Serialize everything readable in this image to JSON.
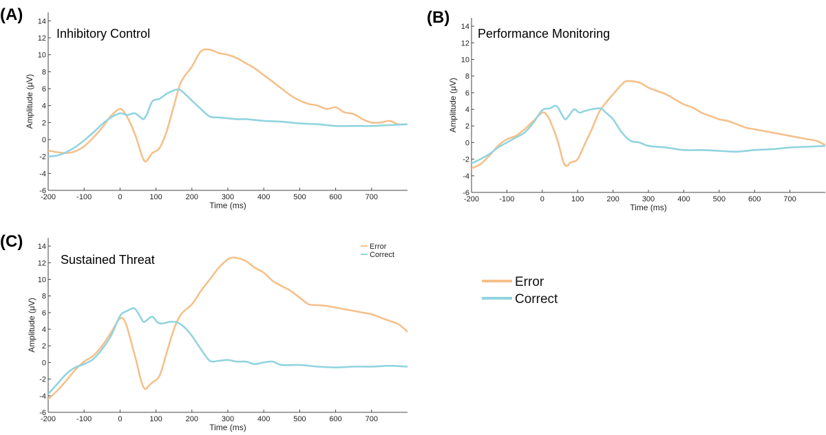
{
  "legend": {
    "items": [
      {
        "label": "Error",
        "color": "#F5C08A"
      },
      {
        "label": "Correct",
        "color": "#91D4E0"
      }
    ]
  },
  "chart_data": [
    {
      "type": "line",
      "letter": "(A)",
      "title": "Inhibitory Control",
      "xlabel": "Time (ms)",
      "ylabel": "Amplitude (μV)",
      "xlim": [
        -200,
        800
      ],
      "ylim": [
        -6,
        15
      ],
      "xticks": [
        -200,
        -100,
        0,
        100,
        200,
        300,
        400,
        500,
        600,
        700
      ],
      "yticks": [
        -6,
        -4,
        -2,
        0,
        2,
        4,
        6,
        8,
        10,
        12,
        14
      ],
      "series": [
        {
          "name": "Error",
          "color": "#F5C08A",
          "points": [
            [
              -200,
              -1.3
            ],
            [
              -175,
              -1.5
            ],
            [
              -150,
              -1.6
            ],
            [
              -125,
              -1.4
            ],
            [
              -100,
              -0.8
            ],
            [
              -75,
              0.2
            ],
            [
              -50,
              1.4
            ],
            [
              -25,
              2.8
            ],
            [
              0,
              3.6
            ],
            [
              15,
              3.0
            ],
            [
              30,
              1.8
            ],
            [
              45,
              0.2
            ],
            [
              60,
              -1.8
            ],
            [
              70,
              -2.6
            ],
            [
              80,
              -2.2
            ],
            [
              90,
              -1.6
            ],
            [
              110,
              -1.0
            ],
            [
              130,
              1.0
            ],
            [
              150,
              4.0
            ],
            [
              170,
              6.8
            ],
            [
              200,
              8.6
            ],
            [
              225,
              10.4
            ],
            [
              250,
              10.6
            ],
            [
              275,
              10.2
            ],
            [
              300,
              10.0
            ],
            [
              325,
              9.6
            ],
            [
              350,
              9.0
            ],
            [
              375,
              8.4
            ],
            [
              400,
              7.6
            ],
            [
              425,
              6.8
            ],
            [
              450,
              6.0
            ],
            [
              475,
              5.2
            ],
            [
              500,
              4.6
            ],
            [
              525,
              4.2
            ],
            [
              550,
              4.0
            ],
            [
              575,
              3.6
            ],
            [
              600,
              3.8
            ],
            [
              625,
              3.2
            ],
            [
              650,
              3.0
            ],
            [
              675,
              2.4
            ],
            [
              700,
              2.0
            ],
            [
              725,
              2.0
            ],
            [
              750,
              2.2
            ],
            [
              775,
              1.8
            ],
            [
              800,
              1.8
            ]
          ]
        },
        {
          "name": "Correct",
          "color": "#91D4E0",
          "points": [
            [
              -200,
              -2.0
            ],
            [
              -175,
              -1.9
            ],
            [
              -150,
              -1.5
            ],
            [
              -125,
              -0.9
            ],
            [
              -100,
              -0.1
            ],
            [
              -75,
              0.8
            ],
            [
              -50,
              1.8
            ],
            [
              -25,
              2.6
            ],
            [
              0,
              3.1
            ],
            [
              20,
              2.9
            ],
            [
              40,
              3.1
            ],
            [
              55,
              2.7
            ],
            [
              65,
              2.4
            ],
            [
              75,
              3.0
            ],
            [
              90,
              4.5
            ],
            [
              110,
              4.8
            ],
            [
              130,
              5.4
            ],
            [
              150,
              5.8
            ],
            [
              165,
              5.9
            ],
            [
              180,
              5.4
            ],
            [
              200,
              4.6
            ],
            [
              225,
              3.6
            ],
            [
              250,
              2.7
            ],
            [
              275,
              2.6
            ],
            [
              300,
              2.5
            ],
            [
              325,
              2.4
            ],
            [
              350,
              2.4
            ],
            [
              375,
              2.3
            ],
            [
              400,
              2.2
            ],
            [
              450,
              2.1
            ],
            [
              500,
              1.9
            ],
            [
              550,
              1.8
            ],
            [
              600,
              1.6
            ],
            [
              650,
              1.6
            ],
            [
              700,
              1.6
            ],
            [
              750,
              1.7
            ],
            [
              800,
              1.8
            ]
          ]
        }
      ]
    },
    {
      "type": "line",
      "letter": "(B)",
      "title": "Performance Monitoring",
      "xlabel": "Time (ms)",
      "ylabel": "Amplitude (μV)",
      "xlim": [
        -200,
        800
      ],
      "ylim": [
        -6,
        15
      ],
      "xticks": [
        -200,
        -100,
        0,
        100,
        200,
        300,
        400,
        500,
        600,
        700
      ],
      "yticks": [
        -6,
        -4,
        -2,
        0,
        2,
        4,
        6,
        8,
        10,
        12,
        14
      ],
      "series": [
        {
          "name": "Error",
          "color": "#F5C08A",
          "points": [
            [
              -200,
              -3.1
            ],
            [
              -175,
              -2.6
            ],
            [
              -150,
              -1.6
            ],
            [
              -125,
              -0.4
            ],
            [
              -100,
              0.4
            ],
            [
              -75,
              0.8
            ],
            [
              -50,
              1.6
            ],
            [
              -25,
              2.6
            ],
            [
              0,
              3.6
            ],
            [
              15,
              3.2
            ],
            [
              30,
              1.8
            ],
            [
              45,
              0.0
            ],
            [
              60,
              -2.4
            ],
            [
              70,
              -2.8
            ],
            [
              80,
              -2.4
            ],
            [
              100,
              -2.0
            ],
            [
              120,
              -0.2
            ],
            [
              140,
              1.6
            ],
            [
              160,
              3.6
            ],
            [
              180,
              4.8
            ],
            [
              200,
              5.8
            ],
            [
              225,
              7.0
            ],
            [
              240,
              7.4
            ],
            [
              275,
              7.2
            ],
            [
              300,
              6.6
            ],
            [
              325,
              6.2
            ],
            [
              350,
              5.8
            ],
            [
              375,
              5.2
            ],
            [
              400,
              4.6
            ],
            [
              425,
              4.2
            ],
            [
              450,
              3.6
            ],
            [
              475,
              3.2
            ],
            [
              500,
              2.8
            ],
            [
              525,
              2.6
            ],
            [
              550,
              2.2
            ],
            [
              575,
              1.8
            ],
            [
              600,
              1.6
            ],
            [
              625,
              1.4
            ],
            [
              650,
              1.2
            ],
            [
              675,
              1.0
            ],
            [
              700,
              0.8
            ],
            [
              725,
              0.6
            ],
            [
              750,
              0.4
            ],
            [
              775,
              0.2
            ],
            [
              800,
              -0.3
            ]
          ]
        },
        {
          "name": "Correct",
          "color": "#91D4E0",
          "points": [
            [
              -200,
              -2.5
            ],
            [
              -175,
              -2.0
            ],
            [
              -150,
              -1.4
            ],
            [
              -125,
              -0.6
            ],
            [
              -100,
              0.0
            ],
            [
              -75,
              0.6
            ],
            [
              -50,
              1.2
            ],
            [
              -25,
              2.4
            ],
            [
              0,
              3.9
            ],
            [
              20,
              4.1
            ],
            [
              40,
              4.4
            ],
            [
              55,
              3.4
            ],
            [
              65,
              2.8
            ],
            [
              75,
              3.2
            ],
            [
              90,
              4.0
            ],
            [
              105,
              3.6
            ],
            [
              120,
              3.8
            ],
            [
              140,
              4.0
            ],
            [
              165,
              4.1
            ],
            [
              180,
              3.6
            ],
            [
              200,
              2.8
            ],
            [
              225,
              1.2
            ],
            [
              250,
              0.2
            ],
            [
              275,
              0.0
            ],
            [
              300,
              -0.4
            ],
            [
              350,
              -0.6
            ],
            [
              400,
              -0.9
            ],
            [
              450,
              -0.9
            ],
            [
              500,
              -1.0
            ],
            [
              550,
              -1.1
            ],
            [
              600,
              -0.9
            ],
            [
              650,
              -0.8
            ],
            [
              700,
              -0.6
            ],
            [
              750,
              -0.5
            ],
            [
              800,
              -0.4
            ]
          ]
        }
      ]
    },
    {
      "type": "line",
      "letter": "(C)",
      "title": "Sustained Threat",
      "xlabel": "Time (ms)",
      "ylabel": "Amplitude (μV)",
      "xlim": [
        -200,
        800
      ],
      "ylim": [
        -6,
        15
      ],
      "xticks": [
        -200,
        -100,
        0,
        100,
        200,
        300,
        400,
        500,
        600,
        700
      ],
      "yticks": [
        -6,
        -4,
        -2,
        0,
        2,
        4,
        6,
        8,
        10,
        12,
        14
      ],
      "series": [
        {
          "name": "Error",
          "color": "#F5C08A",
          "points": [
            [
              -200,
              -4.4
            ],
            [
              -175,
              -3.4
            ],
            [
              -150,
              -2.2
            ],
            [
              -125,
              -0.9
            ],
            [
              -100,
              0.1
            ],
            [
              -75,
              0.8
            ],
            [
              -50,
              2.0
            ],
            [
              -25,
              3.6
            ],
            [
              0,
              5.3
            ],
            [
              15,
              4.8
            ],
            [
              30,
              2.6
            ],
            [
              45,
              0.2
            ],
            [
              60,
              -2.4
            ],
            [
              70,
              -3.2
            ],
            [
              80,
              -2.8
            ],
            [
              90,
              -2.4
            ],
            [
              110,
              -1.6
            ],
            [
              130,
              1.2
            ],
            [
              150,
              4.0
            ],
            [
              170,
              5.8
            ],
            [
              200,
              7.0
            ],
            [
              225,
              8.6
            ],
            [
              250,
              10.0
            ],
            [
              275,
              11.4
            ],
            [
              300,
              12.4
            ],
            [
              320,
              12.6
            ],
            [
              350,
              12.2
            ],
            [
              375,
              11.4
            ],
            [
              400,
              10.8
            ],
            [
              425,
              9.8
            ],
            [
              450,
              9.2
            ],
            [
              475,
              8.6
            ],
            [
              500,
              7.8
            ],
            [
              525,
              7.0
            ],
            [
              550,
              6.9
            ],
            [
              575,
              6.8
            ],
            [
              600,
              6.6
            ],
            [
              625,
              6.4
            ],
            [
              650,
              6.2
            ],
            [
              675,
              6.0
            ],
            [
              700,
              5.8
            ],
            [
              725,
              5.4
            ],
            [
              750,
              5.0
            ],
            [
              775,
              4.6
            ],
            [
              800,
              3.7
            ]
          ]
        },
        {
          "name": "Correct",
          "color": "#91D4E0",
          "points": [
            [
              -200,
              -3.8
            ],
            [
              -175,
              -2.6
            ],
            [
              -150,
              -1.4
            ],
            [
              -125,
              -0.6
            ],
            [
              -100,
              -0.2
            ],
            [
              -75,
              0.4
            ],
            [
              -50,
              1.6
            ],
            [
              -25,
              3.2
            ],
            [
              0,
              5.6
            ],
            [
              20,
              6.2
            ],
            [
              40,
              6.5
            ],
            [
              55,
              5.6
            ],
            [
              65,
              4.9
            ],
            [
              75,
              5.1
            ],
            [
              90,
              5.5
            ],
            [
              105,
              4.8
            ],
            [
              120,
              4.7
            ],
            [
              140,
              4.9
            ],
            [
              160,
              4.8
            ],
            [
              180,
              4.2
            ],
            [
              200,
              3.2
            ],
            [
              225,
              1.6
            ],
            [
              250,
              0.2
            ],
            [
              275,
              0.2
            ],
            [
              300,
              0.3
            ],
            [
              325,
              0.1
            ],
            [
              350,
              0.1
            ],
            [
              375,
              -0.2
            ],
            [
              400,
              0.0
            ],
            [
              425,
              0.1
            ],
            [
              450,
              -0.3
            ],
            [
              500,
              -0.3
            ],
            [
              550,
              -0.5
            ],
            [
              600,
              -0.6
            ],
            [
              650,
              -0.5
            ],
            [
              700,
              -0.5
            ],
            [
              750,
              -0.4
            ],
            [
              800,
              -0.5
            ]
          ]
        }
      ]
    }
  ]
}
